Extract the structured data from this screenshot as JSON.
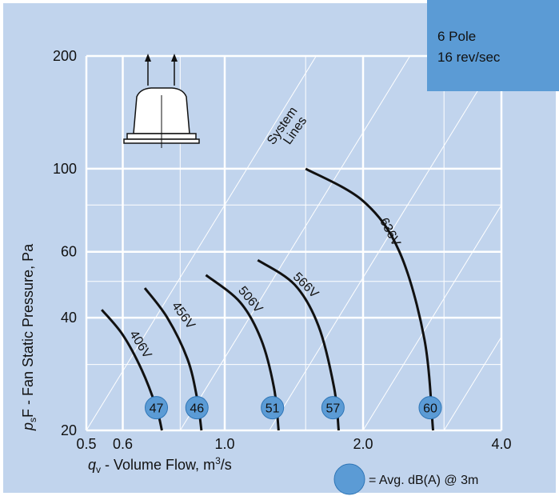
{
  "chart_data": {
    "type": "line",
    "x_scale": "log",
    "y_scale": "log",
    "xlim": [
      0.5,
      4.0
    ],
    "ylim": [
      20,
      200
    ],
    "x_ticks": [
      0.5,
      0.6,
      1.0,
      2.0,
      4.0
    ],
    "x_tick_labels": [
      "0.5",
      "0.6",
      "1.0",
      "2.0",
      "4.0"
    ],
    "y_ticks": [
      20,
      40,
      60,
      100,
      200
    ],
    "y_tick_labels": [
      "20",
      "40",
      "60",
      "100",
      "200"
    ],
    "grid": true,
    "series": [
      {
        "name": "406V",
        "points": [
          [
            0.54,
            42
          ],
          [
            0.6,
            36
          ],
          [
            0.66,
            29
          ],
          [
            0.71,
            23
          ],
          [
            0.73,
            20
          ]
        ],
        "dB": 47,
        "dB_point": [
          0.71,
          23
        ]
      },
      {
        "name": "456V",
        "points": [
          [
            0.67,
            48
          ],
          [
            0.75,
            40
          ],
          [
            0.83,
            31
          ],
          [
            0.87,
            24.5
          ],
          [
            0.89,
            20
          ]
        ],
        "dB": 46,
        "dB_point": [
          0.87,
          23
        ]
      },
      {
        "name": "506V",
        "points": [
          [
            0.91,
            52
          ],
          [
            1.08,
            44
          ],
          [
            1.2,
            35
          ],
          [
            1.28,
            26
          ],
          [
            1.31,
            20
          ]
        ],
        "dB": 51,
        "dB_point": [
          1.27,
          23
        ]
      },
      {
        "name": "566V",
        "points": [
          [
            1.18,
            57
          ],
          [
            1.42,
            49
          ],
          [
            1.6,
            38
          ],
          [
            1.73,
            26
          ],
          [
            1.77,
            20
          ]
        ],
        "dB": 57,
        "dB_point": [
          1.72,
          23
        ]
      },
      {
        "name": "636V",
        "points": [
          [
            1.5,
            100
          ],
          [
            2.0,
            82
          ],
          [
            2.4,
            60
          ],
          [
            2.72,
            35
          ],
          [
            2.84,
            20
          ]
        ],
        "dB": 60,
        "dB_point": [
          2.8,
          23
        ]
      }
    ],
    "system_lines_label": [
      "System",
      "Lines"
    ],
    "xlabel": {
      "q": "q",
      "sub": "v",
      "rest": " - Volume Flow, m",
      "sup": "3",
      "end": "/s"
    },
    "ylabel": {
      "p": "p",
      "sub": "s",
      "rest": "F - Fan Static Pressure, Pa"
    },
    "legend_marker_label": "= Avg. dB(A) @ 3m",
    "info_box": [
      "6 Pole",
      "16 rev/sec"
    ],
    "colors": {
      "panel": "#c1d4ed",
      "info_box": "#5b9bd5",
      "curve": "#111111",
      "marker_fill": "#5b9bd5"
    }
  }
}
